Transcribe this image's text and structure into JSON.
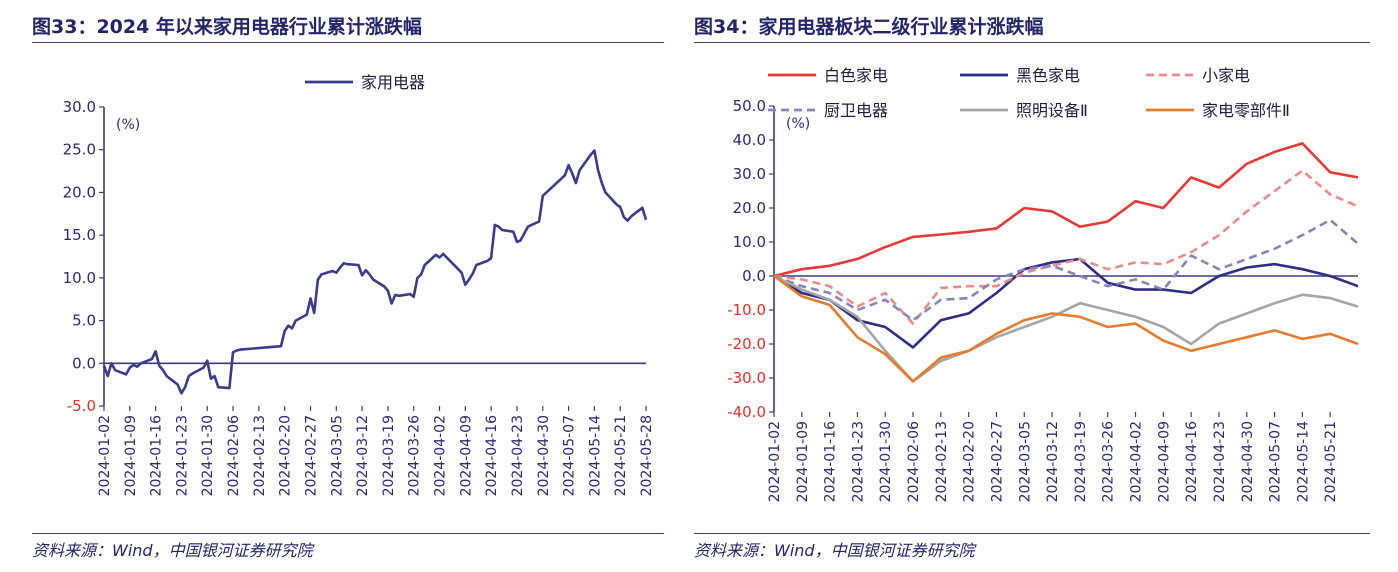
{
  "left": {
    "title": "图33：2024 年以来家用电器行业累计涨跌幅",
    "source": "资料来源：Wind，中国银河证券研究院",
    "chart_data": {
      "type": "line",
      "title": "",
      "ylabel": "(%)",
      "ylim": [
        -5,
        30
      ],
      "yticks": [
        "30.0",
        "25.0",
        "20.0",
        "15.0",
        "10.0",
        "5.0",
        "0.0",
        "-5.0"
      ],
      "xticks": [
        "2024-01-02",
        "2024-01-09",
        "2024-01-16",
        "2024-01-23",
        "2024-01-30",
        "2024-02-06",
        "2024-02-13",
        "2024-02-20",
        "2024-02-27",
        "2024-03-05",
        "2024-03-12",
        "2024-03-19",
        "2024-03-26",
        "2024-04-02",
        "2024-04-09",
        "2024-04-16",
        "2024-04-23",
        "2024-04-30",
        "2024-05-07",
        "2024-05-14",
        "2024-05-21",
        "2024-05-28"
      ],
      "x_dates": [
        "2024-01-02",
        "2024-01-03",
        "2024-01-04",
        "2024-01-05",
        "2024-01-08",
        "2024-01-09",
        "2024-01-10",
        "2024-01-11",
        "2024-01-12",
        "2024-01-15",
        "2024-01-16",
        "2024-01-17",
        "2024-01-18",
        "2024-01-19",
        "2024-01-22",
        "2024-01-23",
        "2024-01-24",
        "2024-01-25",
        "2024-01-26",
        "2024-01-29",
        "2024-01-30",
        "2024-01-31",
        "2024-02-01",
        "2024-02-02",
        "2024-02-05",
        "2024-02-06",
        "2024-02-07",
        "2024-02-08",
        "2024-02-19",
        "2024-02-20",
        "2024-02-21",
        "2024-02-22",
        "2024-02-23",
        "2024-02-26",
        "2024-02-27",
        "2024-02-28",
        "2024-02-29",
        "2024-03-01",
        "2024-03-04",
        "2024-03-05",
        "2024-03-06",
        "2024-03-07",
        "2024-03-08",
        "2024-03-11",
        "2024-03-12",
        "2024-03-13",
        "2024-03-14",
        "2024-03-15",
        "2024-03-18",
        "2024-03-19",
        "2024-03-20",
        "2024-03-21",
        "2024-03-22",
        "2024-03-25",
        "2024-03-26",
        "2024-03-27",
        "2024-03-28",
        "2024-03-29",
        "2024-04-01",
        "2024-04-02",
        "2024-04-03",
        "2024-04-08",
        "2024-04-09",
        "2024-04-10",
        "2024-04-11",
        "2024-04-12",
        "2024-04-15",
        "2024-04-16",
        "2024-04-17",
        "2024-04-18",
        "2024-04-19",
        "2024-04-22",
        "2024-04-23",
        "2024-04-24",
        "2024-04-25",
        "2024-04-26",
        "2024-04-29",
        "2024-04-30",
        "2024-05-06",
        "2024-05-07",
        "2024-05-08",
        "2024-05-09",
        "2024-05-10",
        "2024-05-13",
        "2024-05-14",
        "2024-05-15",
        "2024-05-16",
        "2024-05-17",
        "2024-05-20",
        "2024-05-21",
        "2024-05-22",
        "2024-05-23",
        "2024-05-24",
        "2024-05-27",
        "2024-05-28"
      ],
      "series": [
        {
          "name": "家用电器",
          "color": "#3b3b8f",
          "values": [
            -0.3,
            -1.5,
            0.0,
            -0.8,
            -1.3,
            -0.5,
            -0.2,
            -0.4,
            0.0,
            0.5,
            1.4,
            -0.3,
            -0.8,
            -1.5,
            -2.5,
            -3.5,
            -2.8,
            -1.5,
            -1.2,
            -0.5,
            0.3,
            -1.8,
            -1.5,
            -2.8,
            -2.9,
            1.3,
            1.5,
            1.6,
            2.0,
            3.8,
            4.4,
            4.1,
            5.0,
            5.7,
            7.6,
            5.9,
            9.8,
            10.4,
            10.8,
            10.6,
            11.2,
            11.7,
            11.6,
            11.5,
            10.3,
            10.9,
            10.4,
            9.8,
            9.0,
            8.5,
            7.0,
            8.0,
            7.9,
            8.1,
            7.8,
            10.0,
            10.4,
            11.5,
            12.7,
            12.4,
            12.8,
            10.6,
            9.2,
            9.8,
            10.5,
            11.5,
            12.0,
            12.3,
            16.2,
            16.0,
            15.6,
            15.4,
            14.2,
            14.4,
            15.2,
            16.0,
            16.6,
            19.6,
            22.0,
            23.2,
            22.2,
            21.1,
            22.6,
            24.4,
            24.9,
            22.6,
            21.1,
            20.0,
            18.6,
            18.3,
            17.1,
            16.7,
            17.2,
            18.2,
            16.8
          ]
        }
      ]
    }
  },
  "right": {
    "title": "图34：家用电器板块二级行业累计涨跌幅",
    "source": "资料来源：Wind，中国银河证券研究院",
    "chart_data": {
      "type": "line",
      "title": "",
      "ylabel": "(%)",
      "ylim": [
        -40,
        50
      ],
      "yticks": [
        "50.0",
        "40.0",
        "30.0",
        "20.0",
        "10.0",
        "0.0",
        "-10.0",
        "-20.0",
        "-30.0",
        "-40.0"
      ],
      "xticks": [
        "2024-01-02",
        "2024-01-09",
        "2024-01-16",
        "2024-01-23",
        "2024-01-30",
        "2024-02-06",
        "2024-02-13",
        "2024-02-20",
        "2024-02-27",
        "2024-03-05",
        "2024-03-12",
        "2024-03-19",
        "2024-03-26",
        "2024-04-02",
        "2024-04-09",
        "2024-04-16",
        "2024-04-23",
        "2024-04-30",
        "2024-05-07",
        "2024-05-14",
        "2024-05-21"
      ],
      "x_dates": [
        "2024-01-02",
        "2024-01-09",
        "2024-01-16",
        "2024-01-23",
        "2024-01-30",
        "2024-02-06",
        "2024-02-13",
        "2024-02-20",
        "2024-02-27",
        "2024-03-05",
        "2024-03-12",
        "2024-03-19",
        "2024-03-26",
        "2024-04-02",
        "2024-04-09",
        "2024-04-16",
        "2024-04-23",
        "2024-04-30",
        "2024-05-07",
        "2024-05-14",
        "2024-05-21",
        "2024-05-28"
      ],
      "series": [
        {
          "name": "白色家电",
          "color": "#e83a35",
          "dash": "solid",
          "values": [
            0.0,
            2.0,
            3.0,
            5.0,
            8.5,
            11.5,
            12.2,
            13.0,
            14.0,
            20.0,
            19.0,
            14.5,
            16.0,
            22.0,
            20.0,
            29.0,
            26.0,
            33.0,
            36.5,
            39.0,
            30.5,
            29.0
          ]
        },
        {
          "name": "黑色家电",
          "color": "#2e2e8a",
          "dash": "solid",
          "values": [
            0.0,
            -5.0,
            -7.0,
            -13.0,
            -15.0,
            -21.0,
            -13.0,
            -11.0,
            -5.0,
            2.0,
            4.0,
            5.0,
            -2.0,
            -4.0,
            -4.0,
            -5.0,
            0.0,
            2.5,
            3.5,
            2.0,
            0.0,
            -3.0
          ]
        },
        {
          "name": "小家电",
          "color": "#f08a8a",
          "dash": "dash",
          "values": [
            0.0,
            -1.0,
            -3.0,
            -9.0,
            -5.0,
            -14.0,
            -3.5,
            -3.0,
            -3.0,
            1.0,
            3.0,
            5.0,
            2.0,
            4.0,
            3.5,
            7.0,
            12.0,
            19.0,
            25.0,
            31.0,
            24.0,
            20.5
          ]
        },
        {
          "name": "厨卫电器",
          "color": "#8686b8",
          "dash": "dash",
          "values": [
            0.0,
            -3.0,
            -5.0,
            -10.0,
            -7.0,
            -13.0,
            -7.0,
            -6.5,
            -1.0,
            2.0,
            3.0,
            0.0,
            -3.0,
            -1.0,
            -4.0,
            6.0,
            2.0,
            5.0,
            8.0,
            12.0,
            16.5,
            9.5
          ]
        },
        {
          "name": "照明设备Ⅱ",
          "color": "#a6a6a6",
          "dash": "solid",
          "values": [
            0.0,
            -4.0,
            -7.0,
            -12.0,
            -22.0,
            -31.0,
            -25.0,
            -22.0,
            -18.0,
            -15.0,
            -12.0,
            -8.0,
            -10.0,
            -12.0,
            -15.0,
            -20.0,
            -14.0,
            -11.0,
            -8.0,
            -5.5,
            -6.5,
            -9.0
          ]
        },
        {
          "name": "家电零部件Ⅱ",
          "color": "#e87b2c",
          "dash": "solid",
          "values": [
            0.0,
            -6.0,
            -8.5,
            -18.0,
            -23.0,
            -31.0,
            -24.0,
            -22.0,
            -17.0,
            -13.0,
            -11.0,
            -12.0,
            -15.0,
            -14.0,
            -19.0,
            -22.0,
            -20.0,
            -18.0,
            -16.0,
            -18.5,
            -17.0,
            -20.0
          ]
        }
      ]
    }
  }
}
